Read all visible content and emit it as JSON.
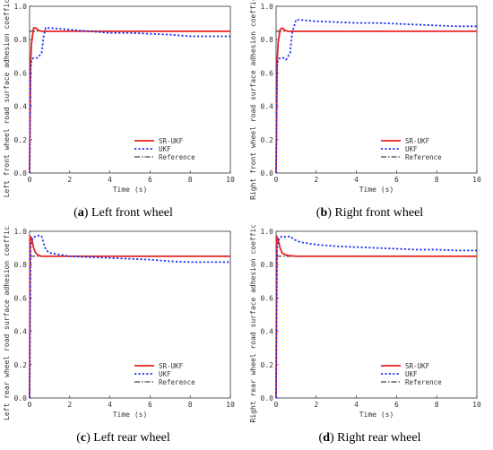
{
  "chart_data": [
    {
      "type": "line",
      "panel_label": "a",
      "caption": "Left front wheel",
      "xlabel": "Time (s)",
      "ylabel": "Left front wheel road surface adhesion coefficient",
      "xlim": [
        0,
        10
      ],
      "ylim": [
        0,
        1.0
      ],
      "xticks": [
        "0",
        "2",
        "4",
        "6",
        "8",
        "10"
      ],
      "yticks": [
        "0.0",
        "0.2",
        "0.4",
        "0.6",
        "0.8",
        "1.0"
      ],
      "legend_position": "bottom-right",
      "series": [
        {
          "name": "SR-UKF",
          "color": "#e8231f",
          "dash": "solid",
          "x": [
            0,
            0.05,
            0.1,
            0.2,
            0.3,
            0.45,
            0.6,
            1,
            2,
            4,
            6,
            8,
            10
          ],
          "y": [
            0,
            0.66,
            0.78,
            0.87,
            0.87,
            0.855,
            0.85,
            0.85,
            0.85,
            0.85,
            0.85,
            0.85,
            0.85
          ]
        },
        {
          "name": "UKF",
          "color": "#2233ee",
          "dash": "dotted",
          "x": [
            0,
            0.05,
            0.1,
            0.2,
            0.4,
            0.6,
            0.7,
            0.8,
            1.0,
            2,
            3,
            4,
            5,
            6,
            7,
            8,
            9,
            10
          ],
          "y": [
            0,
            0.62,
            0.68,
            0.69,
            0.69,
            0.72,
            0.82,
            0.87,
            0.87,
            0.86,
            0.85,
            0.84,
            0.84,
            0.835,
            0.83,
            0.82,
            0.82,
            0.82
          ]
        },
        {
          "name": "Reference",
          "color": "#111111",
          "dash": "dashdot",
          "x": [
            0,
            10
          ],
          "y": [
            0.85,
            0.85
          ]
        }
      ]
    },
    {
      "type": "line",
      "panel_label": "b",
      "caption": "Right front wheel",
      "xlabel": "Time (s)",
      "ylabel": "Right front wheel road surface adhesion coefficient",
      "xlim": [
        0,
        10
      ],
      "ylim": [
        0,
        1.0
      ],
      "xticks": [
        "0",
        "2",
        "4",
        "6",
        "8",
        "10"
      ],
      "yticks": [
        "0.0",
        "0.2",
        "0.4",
        "0.6",
        "0.8",
        "1.0"
      ],
      "legend_position": "bottom-right",
      "series": [
        {
          "name": "SR-UKF",
          "color": "#e8231f",
          "dash": "solid",
          "x": [
            0,
            0.05,
            0.1,
            0.2,
            0.3,
            0.45,
            0.6,
            1,
            2,
            4,
            6,
            8,
            10
          ],
          "y": [
            0,
            0.66,
            0.78,
            0.86,
            0.87,
            0.855,
            0.85,
            0.85,
            0.85,
            0.85,
            0.85,
            0.85,
            0.85
          ]
        },
        {
          "name": "UKF",
          "color": "#2233ee",
          "dash": "dotted",
          "x": [
            0,
            0.05,
            0.1,
            0.2,
            0.4,
            0.5,
            0.7,
            0.8,
            1.0,
            2,
            3,
            4,
            5,
            6,
            7,
            8,
            9,
            10
          ],
          "y": [
            0,
            0.64,
            0.68,
            0.69,
            0.69,
            0.68,
            0.72,
            0.84,
            0.92,
            0.91,
            0.905,
            0.9,
            0.9,
            0.895,
            0.89,
            0.885,
            0.88,
            0.88
          ]
        },
        {
          "name": "Reference",
          "color": "#111111",
          "dash": "dashdot",
          "x": [
            0,
            10
          ],
          "y": [
            0.85,
            0.85
          ]
        }
      ]
    },
    {
      "type": "line",
      "panel_label": "c",
      "caption": "Left rear wheel",
      "xlabel": "Time (s)",
      "ylabel": "Left rear wheel road surface adhesion coefficient",
      "xlim": [
        0,
        10
      ],
      "ylim": [
        0,
        1.0
      ],
      "xticks": [
        "0",
        "2",
        "4",
        "6",
        "8",
        "10"
      ],
      "yticks": [
        "0.0",
        "0.2",
        "0.4",
        "0.6",
        "0.8",
        "1.0"
      ],
      "legend_position": "bottom-right",
      "series": [
        {
          "name": "SR-UKF",
          "color": "#e8231f",
          "dash": "solid",
          "x": [
            0,
            0.03,
            0.1,
            0.2,
            0.3,
            0.45,
            0.6,
            1,
            2,
            4,
            6,
            8,
            10
          ],
          "y": [
            0,
            0.97,
            0.96,
            0.9,
            0.87,
            0.855,
            0.85,
            0.85,
            0.85,
            0.85,
            0.85,
            0.85,
            0.85
          ]
        },
        {
          "name": "UKF",
          "color": "#2233ee",
          "dash": "dotted",
          "x": [
            0,
            0.05,
            0.15,
            0.3,
            0.5,
            0.6,
            0.7,
            0.8,
            1.0,
            2,
            3,
            4,
            5,
            6,
            7,
            8,
            9,
            10
          ],
          "y": [
            0,
            0.9,
            0.96,
            0.97,
            0.975,
            0.97,
            0.93,
            0.89,
            0.87,
            0.85,
            0.845,
            0.84,
            0.835,
            0.83,
            0.82,
            0.815,
            0.815,
            0.815
          ]
        },
        {
          "name": "Reference",
          "color": "#111111",
          "dash": "dashdot",
          "x": [
            0,
            10
          ],
          "y": [
            0.85,
            0.85
          ]
        }
      ]
    },
    {
      "type": "line",
      "panel_label": "d",
      "caption": "Right rear wheel",
      "xlabel": "Time (s)",
      "ylabel": "Right rear wheel road surface adhesion coefficient",
      "xlim": [
        0,
        10
      ],
      "ylim": [
        0,
        1.0
      ],
      "xticks": [
        "0",
        "2",
        "4",
        "6",
        "8",
        "10"
      ],
      "yticks": [
        "0.0",
        "0.2",
        "0.4",
        "0.6",
        "0.8",
        "1.0"
      ],
      "legend_position": "bottom-right",
      "series": [
        {
          "name": "SR-UKF",
          "color": "#e8231f",
          "dash": "solid",
          "x": [
            0,
            0.03,
            0.1,
            0.2,
            0.3,
            0.45,
            0.6,
            1,
            2,
            4,
            6,
            8,
            10
          ],
          "y": [
            0,
            0.97,
            0.95,
            0.9,
            0.87,
            0.86,
            0.855,
            0.85,
            0.85,
            0.85,
            0.85,
            0.85,
            0.85
          ]
        },
        {
          "name": "UKF",
          "color": "#2233ee",
          "dash": "dotted",
          "x": [
            0,
            0.05,
            0.15,
            0.3,
            0.5,
            0.7,
            0.9,
            1.2,
            2,
            3,
            4,
            5,
            6,
            7,
            8,
            9,
            10
          ],
          "y": [
            0,
            0.9,
            0.96,
            0.97,
            0.965,
            0.97,
            0.95,
            0.935,
            0.92,
            0.91,
            0.905,
            0.9,
            0.895,
            0.89,
            0.89,
            0.885,
            0.885
          ]
        },
        {
          "name": "Reference",
          "color": "#111111",
          "dash": "dashdot",
          "x": [
            0,
            10
          ],
          "y": [
            0.85,
            0.85
          ]
        }
      ]
    }
  ]
}
